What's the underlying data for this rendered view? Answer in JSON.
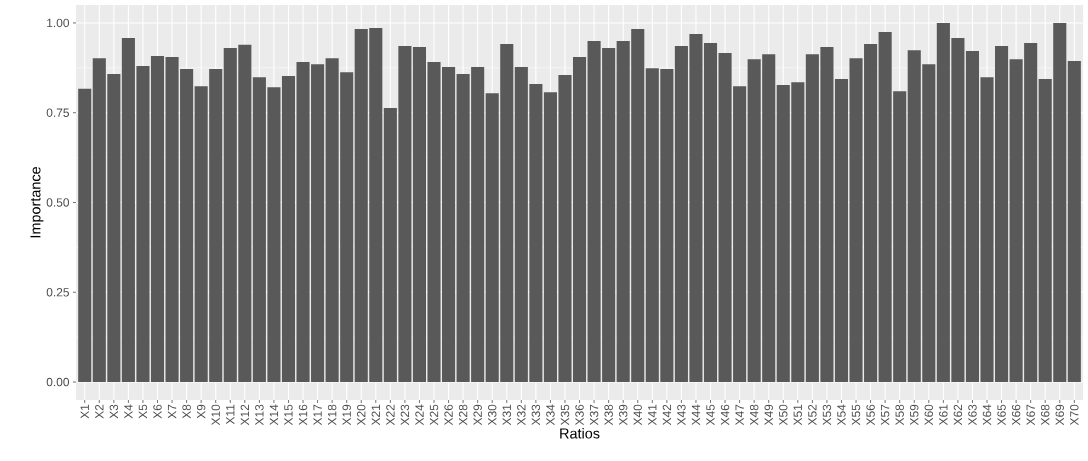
{
  "chart_data": {
    "type": "bar",
    "xlabel": "Ratios",
    "ylabel": "Importance",
    "color": "#595959",
    "grid": true,
    "ylim": [
      -0.05,
      1.05
    ],
    "yticks": [
      {
        "value": 0,
        "label": "0.00"
      },
      {
        "value": 0.25,
        "label": "0.25"
      },
      {
        "value": 0.5,
        "label": "0.50"
      },
      {
        "value": 0.75,
        "label": "0.75"
      },
      {
        "value": 1,
        "label": "1.00"
      }
    ],
    "categories": [
      "X1",
      "X2",
      "X3",
      "X4",
      "X5",
      "X6",
      "X7",
      "X8",
      "X9",
      "X10",
      "X11",
      "X12",
      "X13",
      "X14",
      "X15",
      "X16",
      "X17",
      "X18",
      "X19",
      "X20",
      "X21",
      "X22",
      "X23",
      "X24",
      "X25",
      "X26",
      "X28",
      "X29",
      "X30",
      "X31",
      "X32",
      "X33",
      "X34",
      "X35",
      "X36",
      "X37",
      "X38",
      "X39",
      "X40",
      "X41",
      "X42",
      "X43",
      "X44",
      "X45",
      "X46",
      "X47",
      "X48",
      "X49",
      "X50",
      "X51",
      "X52",
      "X53",
      "X54",
      "X55",
      "X56",
      "X57",
      "X58",
      "X59",
      "X60",
      "X61",
      "X62",
      "X63",
      "X64",
      "X65",
      "X66",
      "X67",
      "X68",
      "X69",
      "X70"
    ],
    "values": [
      0.817,
      0.902,
      0.858,
      0.958,
      0.88,
      0.908,
      0.905,
      0.872,
      0.824,
      0.872,
      0.93,
      0.939,
      0.849,
      0.821,
      0.852,
      0.891,
      0.885,
      0.902,
      0.863,
      0.983,
      0.986,
      0.763,
      0.936,
      0.933,
      0.891,
      0.877,
      0.858,
      0.877,
      0.804,
      0.941,
      0.877,
      0.83,
      0.807,
      0.855,
      0.905,
      0.95,
      0.93,
      0.95,
      0.983,
      0.874,
      0.872,
      0.936,
      0.969,
      0.944,
      0.916,
      0.824,
      0.899,
      0.913,
      0.827,
      0.835,
      0.913,
      0.933,
      0.844,
      0.902,
      0.941,
      0.975,
      0.81,
      0.924,
      0.885,
      1.0,
      0.958,
      0.922,
      0.849,
      0.936,
      0.899,
      0.944,
      0.844,
      1.0,
      0.894
    ]
  }
}
